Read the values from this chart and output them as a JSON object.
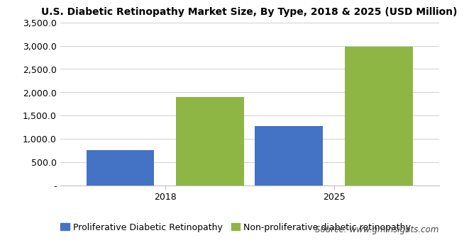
{
  "title": "U.S. Diabetic Retinopathy Market Size, By Type, 2018 & 2025 (USD Million)",
  "years": [
    "2018",
    "2025"
  ],
  "proliferative": [
    750,
    1270
  ],
  "non_proliferative": [
    1900,
    2980
  ],
  "bar_color_proliferative": "#4472c4",
  "bar_color_non_proliferative": "#8db645",
  "legend_labels": [
    "Proliferative Diabetic Retinopathy",
    "Non-proliferative diabetic retinopathy"
  ],
  "ylim": [
    0,
    3500
  ],
  "yticks": [
    0,
    500,
    1000,
    1500,
    2000,
    2500,
    3000,
    3500
  ],
  "ytick_labels": [
    "-",
    "500.0",
    "1,000.0",
    "1,500.0",
    "2,000.0",
    "2,500.0",
    "3,000.0",
    "3,500.0"
  ],
  "source_text": "Source: www.gminsights.com",
  "background_color": "#ffffff",
  "footer_bg_color": "#e8e8e8",
  "plot_bg_color": "#ffffff",
  "bar_width": 0.18,
  "title_fontsize": 10,
  "tick_fontsize": 9,
  "legend_fontsize": 9,
  "source_fontsize": 8.5
}
